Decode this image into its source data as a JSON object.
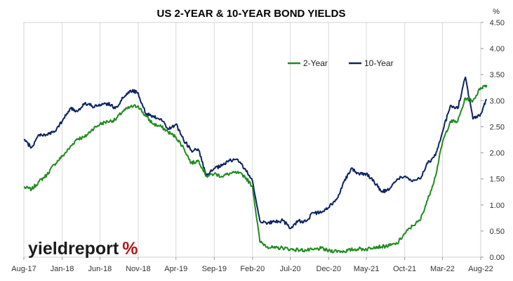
{
  "chart_data": {
    "type": "line",
    "title": "US 2-YEAR & 10-YEAR BOND YIELDS",
    "y_unit": "%",
    "ylim": [
      0,
      4.5
    ],
    "y_ticks": [
      "0.00",
      "0.50",
      "1.00",
      "1.50",
      "2.00",
      "2.50",
      "3.00",
      "3.50",
      "4.00",
      "4.50"
    ],
    "x_ticks": [
      "Aug-17",
      "Jan-18",
      "Jun-18",
      "Nov-18",
      "Apr-19",
      "Sep-19",
      "Feb-20",
      "Jul-20",
      "Dec-20",
      "May-21",
      "Oct-21",
      "Mar-22",
      "Aug-22"
    ],
    "x_range": [
      "Aug-17",
      "Aug-22"
    ],
    "grid": {
      "vertical": true,
      "horizontal": false
    },
    "legend_position": "top-right",
    "series": [
      {
        "name": "2-Year",
        "color": "#1e8c1e",
        "points": [
          [
            "2017-08-01",
            1.34
          ],
          [
            "2017-09-01",
            1.3
          ],
          [
            "2017-10-01",
            1.45
          ],
          [
            "2017-11-01",
            1.58
          ],
          [
            "2017-12-01",
            1.78
          ],
          [
            "2018-01-01",
            1.93
          ],
          [
            "2018-02-01",
            2.1
          ],
          [
            "2018-03-01",
            2.27
          ],
          [
            "2018-04-01",
            2.3
          ],
          [
            "2018-05-01",
            2.45
          ],
          [
            "2018-06-01",
            2.55
          ],
          [
            "2018-07-01",
            2.6
          ],
          [
            "2018-08-01",
            2.63
          ],
          [
            "2018-09-01",
            2.8
          ],
          [
            "2018-10-01",
            2.88
          ],
          [
            "2018-11-01",
            2.9
          ],
          [
            "2018-12-01",
            2.7
          ],
          [
            "2019-01-01",
            2.55
          ],
          [
            "2019-02-01",
            2.5
          ],
          [
            "2019-03-01",
            2.4
          ],
          [
            "2019-04-01",
            2.3
          ],
          [
            "2019-05-01",
            2.1
          ],
          [
            "2019-06-01",
            1.8
          ],
          [
            "2019-07-01",
            1.85
          ],
          [
            "2019-08-01",
            1.55
          ],
          [
            "2019-09-01",
            1.6
          ],
          [
            "2019-10-01",
            1.55
          ],
          [
            "2019-11-01",
            1.6
          ],
          [
            "2019-12-01",
            1.62
          ],
          [
            "2020-01-01",
            1.55
          ],
          [
            "2020-02-01",
            1.35
          ],
          [
            "2020-03-01",
            0.3
          ],
          [
            "2020-04-01",
            0.2
          ],
          [
            "2020-05-01",
            0.17
          ],
          [
            "2020-06-01",
            0.18
          ],
          [
            "2020-07-01",
            0.15
          ],
          [
            "2020-08-01",
            0.14
          ],
          [
            "2020-09-01",
            0.13
          ],
          [
            "2020-10-01",
            0.14
          ],
          [
            "2020-11-01",
            0.17
          ],
          [
            "2020-12-01",
            0.12
          ],
          [
            "2021-01-01",
            0.12
          ],
          [
            "2021-02-01",
            0.11
          ],
          [
            "2021-03-01",
            0.14
          ],
          [
            "2021-04-01",
            0.16
          ],
          [
            "2021-05-01",
            0.15
          ],
          [
            "2021-06-01",
            0.2
          ],
          [
            "2021-07-01",
            0.2
          ],
          [
            "2021-08-01",
            0.22
          ],
          [
            "2021-09-01",
            0.26
          ],
          [
            "2021-10-01",
            0.45
          ],
          [
            "2021-11-01",
            0.6
          ],
          [
            "2021-12-01",
            0.7
          ],
          [
            "2022-01-01",
            1.1
          ],
          [
            "2022-02-01",
            1.55
          ],
          [
            "2022-03-01",
            2.2
          ],
          [
            "2022-04-01",
            2.6
          ],
          [
            "2022-05-01",
            2.6
          ],
          [
            "2022-06-01",
            3.05
          ],
          [
            "2022-07-01",
            3.0
          ],
          [
            "2022-08-01",
            3.25
          ],
          [
            "2022-08-25",
            3.3
          ]
        ]
      },
      {
        "name": "10-Year",
        "color": "#0c2461",
        "points": [
          [
            "2017-08-01",
            2.25
          ],
          [
            "2017-09-01",
            2.1
          ],
          [
            "2017-10-01",
            2.35
          ],
          [
            "2017-11-01",
            2.35
          ],
          [
            "2017-12-01",
            2.4
          ],
          [
            "2018-01-01",
            2.6
          ],
          [
            "2018-02-01",
            2.85
          ],
          [
            "2018-03-01",
            2.8
          ],
          [
            "2018-04-01",
            2.95
          ],
          [
            "2018-05-01",
            2.9
          ],
          [
            "2018-06-01",
            2.9
          ],
          [
            "2018-07-01",
            2.95
          ],
          [
            "2018-08-01",
            2.85
          ],
          [
            "2018-09-01",
            3.05
          ],
          [
            "2018-10-01",
            3.2
          ],
          [
            "2018-11-01",
            3.15
          ],
          [
            "2018-12-01",
            2.75
          ],
          [
            "2019-01-01",
            2.7
          ],
          [
            "2019-02-01",
            2.65
          ],
          [
            "2019-03-01",
            2.45
          ],
          [
            "2019-04-01",
            2.55
          ],
          [
            "2019-05-01",
            2.25
          ],
          [
            "2019-06-01",
            2.05
          ],
          [
            "2019-07-01",
            2.05
          ],
          [
            "2019-08-01",
            1.55
          ],
          [
            "2019-09-01",
            1.7
          ],
          [
            "2019-10-01",
            1.75
          ],
          [
            "2019-11-01",
            1.85
          ],
          [
            "2019-12-01",
            1.88
          ],
          [
            "2020-01-01",
            1.7
          ],
          [
            "2020-02-01",
            1.45
          ],
          [
            "2020-03-01",
            0.7
          ],
          [
            "2020-04-01",
            0.65
          ],
          [
            "2020-05-01",
            0.68
          ],
          [
            "2020-06-01",
            0.7
          ],
          [
            "2020-07-01",
            0.55
          ],
          [
            "2020-08-01",
            0.7
          ],
          [
            "2020-09-01",
            0.68
          ],
          [
            "2020-10-01",
            0.85
          ],
          [
            "2020-11-01",
            0.85
          ],
          [
            "2020-12-01",
            0.95
          ],
          [
            "2021-01-01",
            1.1
          ],
          [
            "2021-02-01",
            1.45
          ],
          [
            "2021-03-01",
            1.7
          ],
          [
            "2021-04-01",
            1.6
          ],
          [
            "2021-05-01",
            1.6
          ],
          [
            "2021-06-01",
            1.45
          ],
          [
            "2021-07-01",
            1.25
          ],
          [
            "2021-08-01",
            1.3
          ],
          [
            "2021-09-01",
            1.5
          ],
          [
            "2021-10-01",
            1.55
          ],
          [
            "2021-11-01",
            1.45
          ],
          [
            "2021-12-01",
            1.5
          ],
          [
            "2022-01-01",
            1.8
          ],
          [
            "2022-02-01",
            1.95
          ],
          [
            "2022-03-01",
            2.4
          ],
          [
            "2022-04-01",
            2.9
          ],
          [
            "2022-05-01",
            2.85
          ],
          [
            "2022-06-01",
            3.45
          ],
          [
            "2022-07-01",
            2.65
          ],
          [
            "2022-08-01",
            2.75
          ],
          [
            "2022-08-25",
            3.02
          ]
        ]
      }
    ]
  },
  "branding": {
    "logo_word": "yieldreport",
    "logo_symbol": "%",
    "logo_color": "#1b1b1b",
    "logo_symbol_color": "#b01818"
  }
}
